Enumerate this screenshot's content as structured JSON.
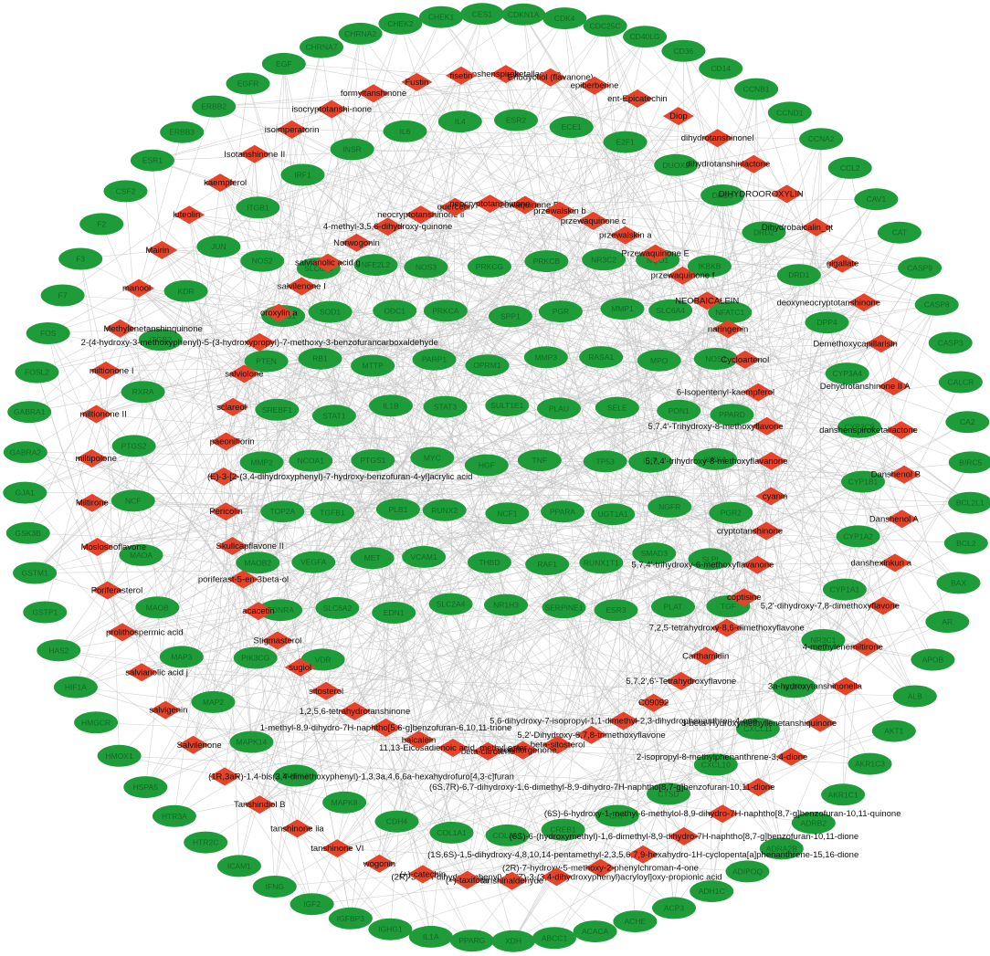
{
  "colors": {
    "gene": "#1f9c3a",
    "compound": "#e5432a",
    "edge": "#c4c4c4",
    "background": "#ffffff"
  },
  "legend": {
    "gene_shape": "ellipse",
    "compound_shape": "diamond"
  },
  "genes": {
    "outer_ring": [
      "CHEK1",
      "CES1",
      "CDKN1A",
      "CDK4",
      "CDC25C",
      "CD40LG",
      "CD36",
      "CD14",
      "CCNB1",
      "CCND1",
      "CCNA2",
      "CCL2",
      "CAV1",
      "CAT",
      "CASP9",
      "CASP8",
      "CASP3",
      "CALCR",
      "CA2",
      "BIRC5",
      "BCL2L1",
      "BCL2",
      "BAX",
      "AR",
      "APOB",
      "ALB",
      "AKT1",
      "AKR1C3",
      "AKR1C1",
      "ADRB2",
      "ADRA2B",
      "ADIPOQ",
      "ADH1C",
      "ACP3",
      "ACHE",
      "ACACA",
      "ABCC1",
      "XDH",
      "PPARG",
      "IL1A",
      "IGHG1",
      "IGFBP3",
      "IGF2",
      "IFNG",
      "ICAM1",
      "HTR2C",
      "HTR3A",
      "HSPA5",
      "HMOX1",
      "HMGCR",
      "HIF1A",
      "HAS2",
      "GSTP1",
      "GSTM1",
      "GSK3B",
      "GJA1",
      "GABRA2",
      "GABRA1",
      "FOSL2",
      "FOS",
      "F7",
      "F3",
      "F2",
      "CSF2",
      "ESR1",
      "ERBB3",
      "ERBB2",
      "EGFR",
      "EGF",
      "CHRNA7",
      "CHRNA2",
      "CHEK2"
    ],
    "inner_ring": [
      "ESR2",
      "ECE1",
      "E2F1",
      "DUOX2",
      "DRD5",
      "DRD2",
      "DRD1",
      "DPP4",
      "CYP3A4",
      "CYP2C9",
      "CYP1B1",
      "CYP1A2",
      "CYP1A1",
      "NR3C1",
      "MMP9",
      "CXCL11",
      "CXCL10",
      "CTSD",
      "CRP",
      "CREB1",
      "COL3A1",
      "COL1A1",
      "CDH4",
      "MAPK8",
      "MAPK3",
      "MAPK14",
      "MAP2",
      "MAP3",
      "MAOB",
      "MAOA",
      "NCF",
      "PTGS2",
      "RXRA",
      "ITGB3",
      "KDR",
      "JUN",
      "ITGB1",
      "IRF1",
      "INSR",
      "IL6",
      "IL4"
    ],
    "core": [
      "NOS2",
      "SLC6A3",
      "NFE2L2",
      "NOS3",
      "PRKCG",
      "PRKCB",
      "NR3C2",
      "NQO1",
      "IKBKB",
      "PRSS1",
      "SOD1",
      "ODC1",
      "PRKCA",
      "SPP1",
      "PGR",
      "MMP1",
      "SLC6A4",
      "NFATC1",
      "PTEN",
      "RB1",
      "MTTP",
      "PARP1",
      "OPRM1",
      "MMP3",
      "RASA1",
      "MPO",
      "NOS1",
      "SREBF1",
      "STAT1",
      "IL1B",
      "STAT3",
      "SULT1E1",
      "PLAU",
      "SELE",
      "PON1",
      "PPARD",
      "MMP2",
      "NCOA1",
      "PTGS1",
      "MYC",
      "HGF",
      "TNF",
      "TP53",
      "IL10",
      "IKBKA",
      "TOP2A",
      "TGFB1",
      "PLB1",
      "RUNX2",
      "NCF1",
      "PPARA",
      "UGT1A1",
      "NGFR",
      "PGR2",
      "MAOB2",
      "VEGFA",
      "MET",
      "VCAM1",
      "THBD",
      "RAF1",
      "RUNX1T1",
      "SMAD3",
      "SLPI",
      "EDNRA",
      "SLC6A2",
      "EDN1",
      "SLC2A4",
      "NR1H3",
      "SERPINE1",
      "ESR3",
      "PLAT",
      "TGF",
      "PIK3CG",
      "VDR"
    ]
  },
  "compounds": {
    "outer": [
      "epidanshenspiroketallactone",
      "Eriodyctiol (flavanone)",
      "epiberberine",
      "ent-Epicatechin",
      "Diop",
      "dihydrotanshinonel",
      "dihydrotanshinlactone",
      "DIHYDROOROXYLIN",
      "Dihydrobaicalin_qt",
      "gigallate",
      "deoxyneocryptotanshinone",
      "Demethoxycapillarisin",
      "Dehydrotanshinone II A",
      "danshenspiroketallactone",
      "Danshenol B",
      "Danshenol A",
      "danshexinkun a",
      "5,2'-dihydroxy-7,8-dimethoxyflavone",
      "4-methylenemiltirone",
      "3a-hydroxytanshinonella",
      "3-beta-Hydroxymethyllenetanshiquinone",
      "2-isopropyl-8-methylphenanthrene-3,4-dione",
      "(6S,7R)-6,7-dihydroxy-1,6-dimethyl-8,9-dihydro-7H-naphtho[8,7-g]benzofuran-10,11-dione",
      "(6S)-6-hydroxy-1-methyl-6-methylol-8,9-dihydro-7H-naphtho[8,7-g]benzofuran-10,11-quinone",
      "(6S)-6-(hydroxymethyl)-1,6-dimethyl-8,9-dihydro-7H-naphtho[8,7-g]benzofuran-10,11-dione",
      "(1S,6S)-1,5-dihydroxy-4,8,10,14-pentamethyl-2,3,5,6,7,9-hexahydro-1H-cyclopenta[a]phenanthrene-15,16-dione",
      "(2R)-7-hydroxy-5-methoxy-2-phenylchroman-4-one",
      "(2R)-3-(3,4-dihydroxyphenyl)-2-[(Z)-3-(3,4-dihydroxyphenyl)acryloyl]oxy-propionic acid",
      "tanshinaldehyde",
      "(+)-taxifolin",
      "(+)-catechin",
      "wogonin",
      "tanshinone VI",
      "tanshinone iia",
      "Tanshindiol B",
      "(1R,3aR)-1,4-bis(3,4-dimethoxyphenyl)-1,3,3a,4,6,6a-hexahydrofuro[4,3-c]furan",
      "Salvilenone",
      "salvigenin",
      "salvianolic acid j",
      "prolithospermic acid",
      "Poriferasterol",
      "Moslosooflavone",
      "Miltirone",
      "miltipolone",
      "miltionone II",
      "miltionone I",
      "Methylenetanshinquinone",
      "manool",
      "Mairin",
      "luteolin",
      "kaempferol",
      "Isotanshinone II",
      "isoimperatorin",
      "isocryptotanshi-none",
      "formyltanshinone",
      "Fustin",
      "fisetin"
    ],
    "inner": [
      "Przewaquinone B",
      "przewalskin b",
      "przewaquinone c",
      "przewalskin a",
      "Przewaquinone E",
      "przewaquinone f",
      "NEOBAICALEIN",
      "naringenin",
      "Cycloartenol",
      "6-Isopentenyl-kaempferol",
      "5,7,4'-Trihydroxy-8-methoxyflavone",
      "5,7,4'-trihydroxy-8-methoxyflavanone",
      "cyanin",
      "cryptotanshinone",
      "5,7,4'-trihydroxy-6-methoxyflavanone",
      "coptisine",
      "7,2,5-tetrahydroxy-8,6-dimethoxyflavone",
      "Carthamidin",
      "5,7,2',6'-Tetrahydroxyflavone",
      "C09092",
      "5,6-dihydroxy-7-isopropyl-1,1-dimethyl-2,3-dihydrophenanthren-4-one",
      "5,2'-Dihydroxy-6,7,8-trimethoxyflavone",
      "beta-sitosterol",
      "paeoniflorgenone",
      "beta-carotene",
      "11,13-Eicosadienoic acid, methyl ester",
      "baicalein",
      "1-methyl-8,9-dihydro-7H-naphtho[5,6-g]benzofuran-6,10,11-trione",
      "1,2,5,6-tetrahydrotanshinone",
      "sitosterol",
      "sugiol",
      "Stigmasterol",
      "acacetin",
      "poriferast-5-en-3beta-ol",
      "Skullcapflavone II",
      "Pericolin",
      "(E)-3-[2-(3,4-dihydroxyphenyl)-7-hydroxy-benzofuran-4-yl]acrylic acid",
      "paeoniflorin",
      "sclareol",
      "salviolone",
      "2-(4-hydroxy-3-methoxyphenyl)-5-(3-hydroxypropyl)-7-methoxy-3-benzofurancarboxaldehyde",
      "oroxylin a",
      "salvilenone I",
      "salvianolic acid g",
      "Norwogonin",
      "4-methyl-3,5,6-dihydroxy-quinone",
      "neocryptotanshinone ii",
      "quercetin",
      "neocryptotanshinone"
    ]
  }
}
